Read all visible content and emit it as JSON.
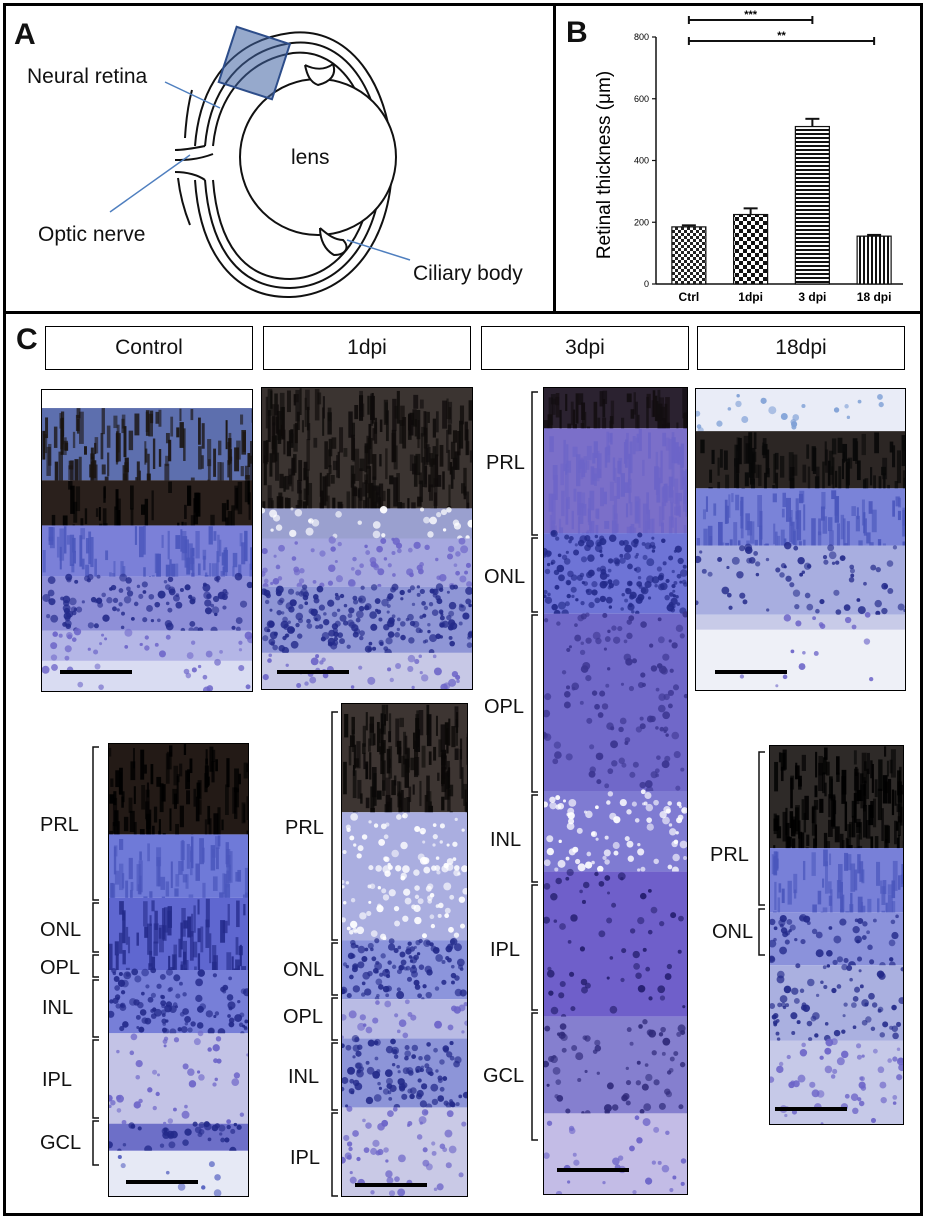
{
  "panels": {
    "a": {
      "letter": "A",
      "labels": {
        "neural_retina": "Neural retina",
        "lens": "lens",
        "optic_nerve": "Optic nerve",
        "ciliary_body": "Ciliary body"
      }
    },
    "b": {
      "letter": "B"
    },
    "c": {
      "letter": "C",
      "headers": [
        "Control",
        "1dpi",
        "3dpi",
        "18dpi"
      ],
      "layers": {
        "control": [
          "PRL",
          "ONL",
          "OPL",
          "INL",
          "IPL",
          "GCL"
        ],
        "dpi1": [
          "PRL",
          "ONL",
          "OPL",
          "INL",
          "IPL"
        ],
        "dpi3": [
          "PRL",
          "ONL",
          "OPL",
          "INL",
          "IPL",
          "GCL"
        ],
        "dpi18": [
          "PRL",
          "ONL"
        ]
      }
    }
  },
  "chart_data": {
    "type": "bar",
    "ylabel": "Retinal thickness (μm)",
    "xlabel": "",
    "categories": [
      "Ctrl",
      "1dpi",
      "3 dpi",
      "18 dpi"
    ],
    "values": [
      185,
      225,
      510,
      155
    ],
    "errors": [
      5,
      20,
      25,
      4
    ],
    "ylim": [
      0,
      800
    ],
    "yticks": [
      "0",
      "200",
      "400",
      "600",
      "800"
    ],
    "significance": [
      {
        "from": "Ctrl",
        "to": "3 dpi",
        "label": "***"
      },
      {
        "from": "Ctrl",
        "to": "18 dpi",
        "label": "**"
      }
    ]
  },
  "colors": {
    "stain_dark": "#2a1e22",
    "stain_purple": "#6c64c8",
    "stain_blue": "#4a56bc",
    "stain_light": "#b4b6e6",
    "nuclei": "#232a8a",
    "lens_overlay": "#3f63a3"
  }
}
